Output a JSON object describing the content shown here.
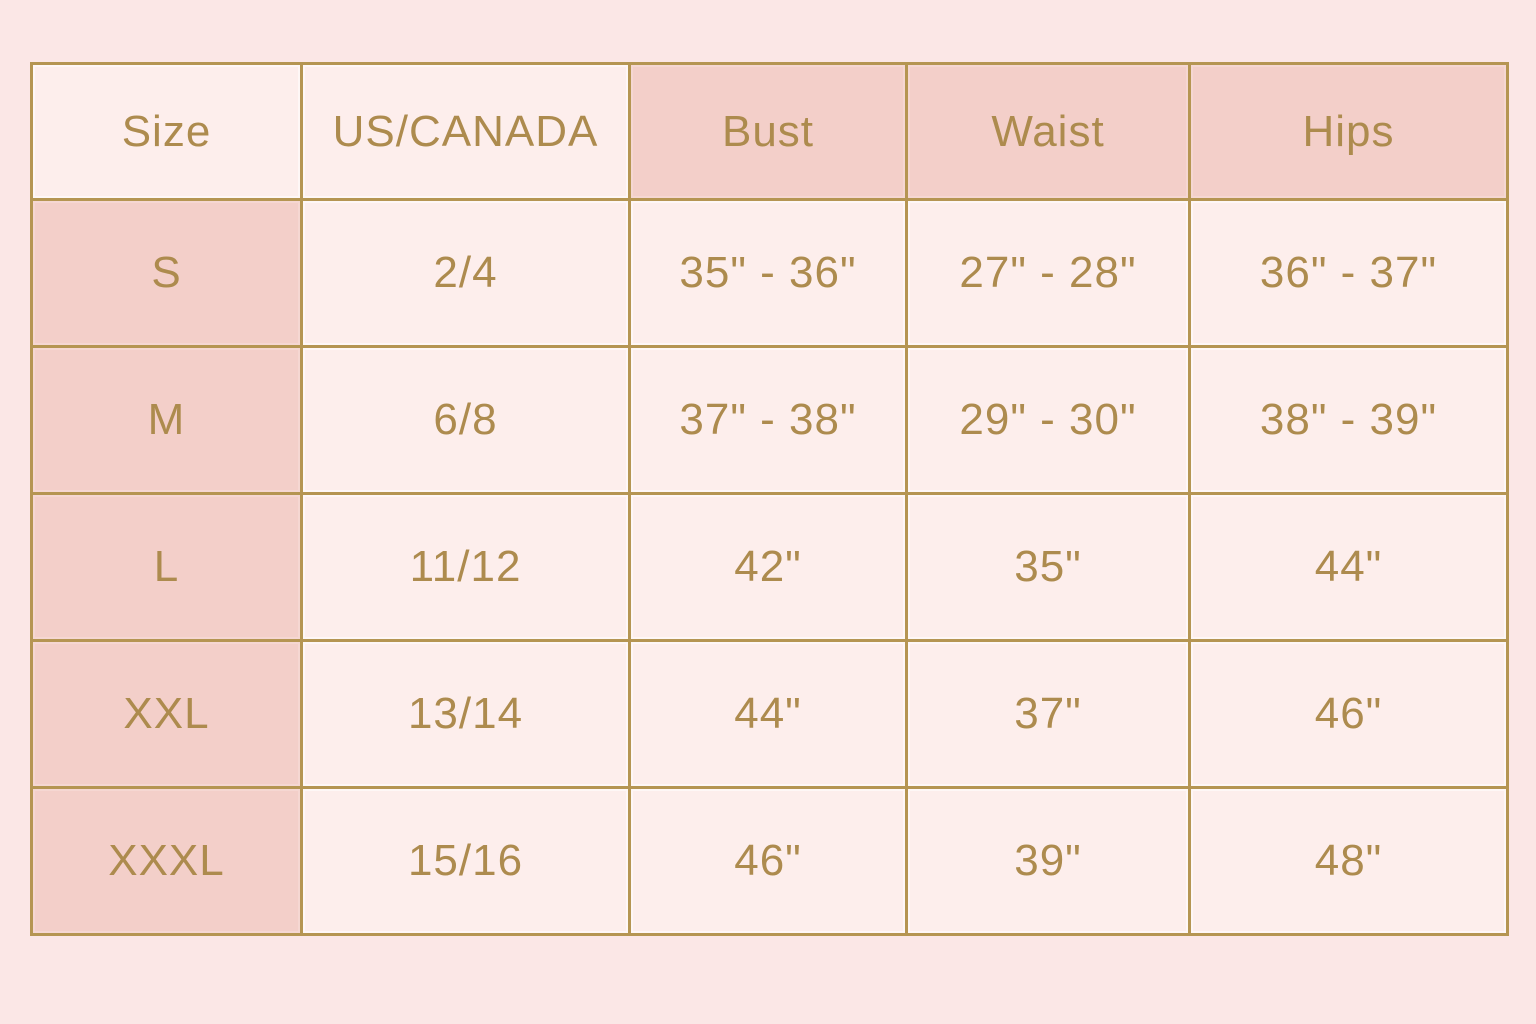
{
  "chart_data": {
    "type": "table",
    "columns": [
      "Size",
      "US/CANADA",
      "Bust",
      "Waist",
      "Hips"
    ],
    "rows": [
      [
        "S",
        "2/4",
        "35\" - 36\"",
        "27\" - 28\"",
        "36\" - 37\""
      ],
      [
        "M",
        "6/8",
        "37\" - 38\"",
        "29\" - 30\"",
        "38\" - 39\""
      ],
      [
        "L",
        "11/12",
        "42\"",
        "35\"",
        "44\""
      ],
      [
        "XXL",
        "13/14",
        "44\"",
        "37\"",
        "46\""
      ],
      [
        "XXXL",
        "15/16",
        "46\"",
        "39\"",
        "48\""
      ]
    ],
    "layout_hints": {
      "shaded_header_columns": [
        "Bust",
        "Waist",
        "Hips"
      ],
      "shaded_body_column": "Size",
      "grid": true
    }
  },
  "colors": {
    "background": "#fbe7e6",
    "cell_light": "#fdeeec",
    "cell_dark": "#f3cfc9",
    "border_gold": "#b59552",
    "text_gold": "#ad8b4e"
  }
}
